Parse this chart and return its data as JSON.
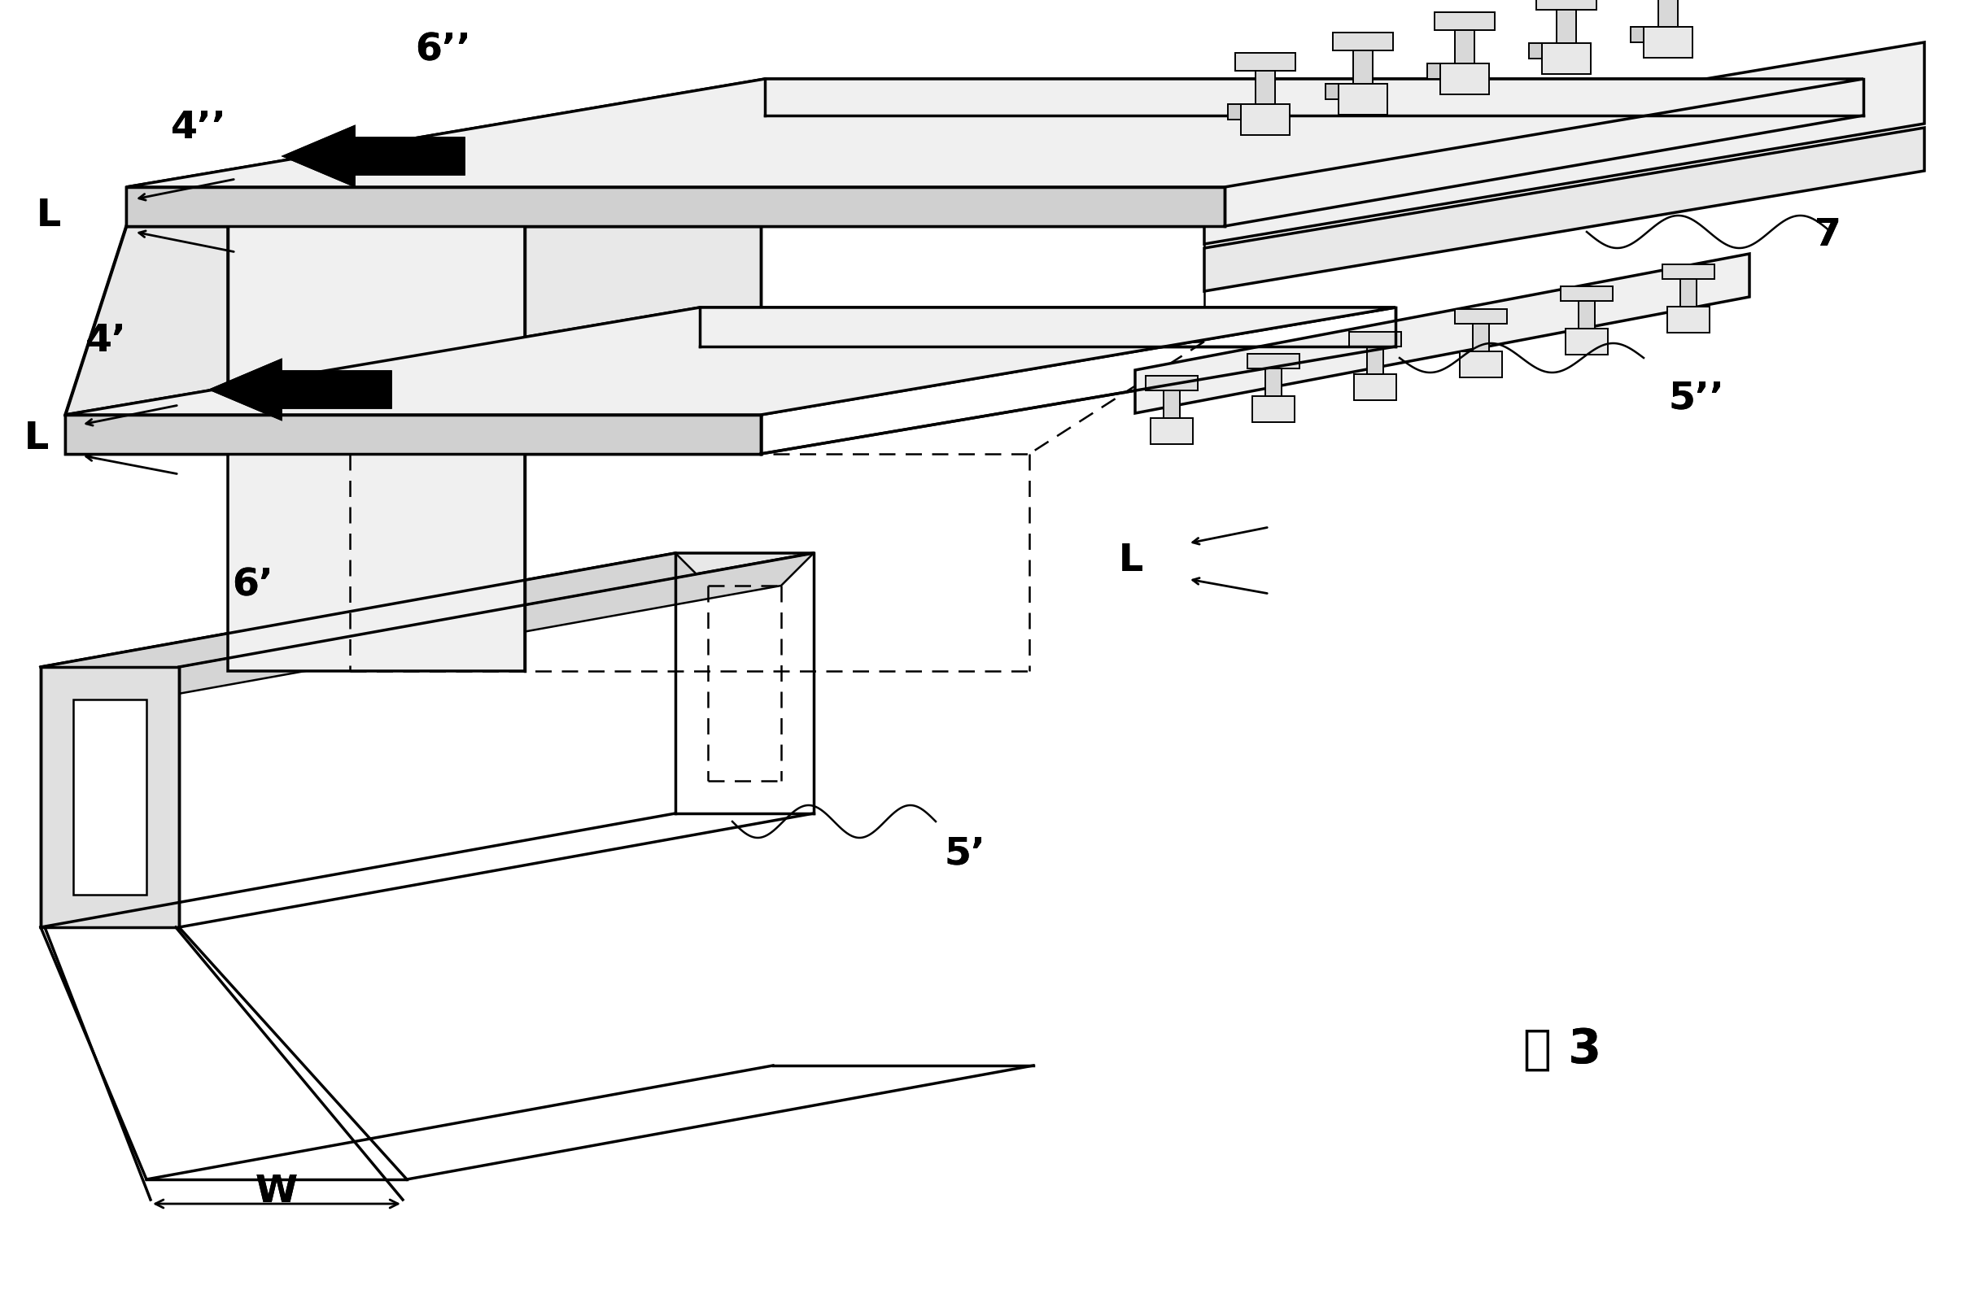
{
  "bg_color": "#ffffff",
  "line_color": "#000000",
  "fig_label": "图 3",
  "label_4pp": "4’’",
  "label_4p": "4’",
  "label_6pp": "6’’",
  "label_6p": "6’",
  "label_5pp": "5’’",
  "label_5p": "5’",
  "label_7": "7",
  "label_L": "L",
  "label_W": "W"
}
